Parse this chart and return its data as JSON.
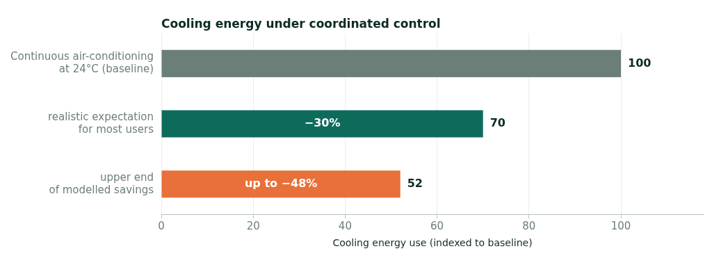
{
  "chart_data": {
    "type": "bar",
    "orientation": "horizontal",
    "title": "Cooling energy under coordinated control",
    "xlabel": "Cooling energy use (indexed to baseline)",
    "categories": [
      "Continuous air-conditioning\nat 24°C (baseline)",
      "realistic expectation\nfor most users",
      "upper end\nof modelled savings"
    ],
    "values": [
      100,
      70,
      52
    ],
    "colors": [
      "#6b7f79",
      "#0e6b5c",
      "#e8703a"
    ],
    "value_labels": [
      "100",
      "70",
      "52"
    ],
    "annotations": [
      "−30%",
      "up to −48%"
    ],
    "xlim": [
      0,
      118
    ],
    "xticks": [
      0,
      20,
      40,
      60,
      80,
      100
    ],
    "grid": "x",
    "legend": false
  }
}
